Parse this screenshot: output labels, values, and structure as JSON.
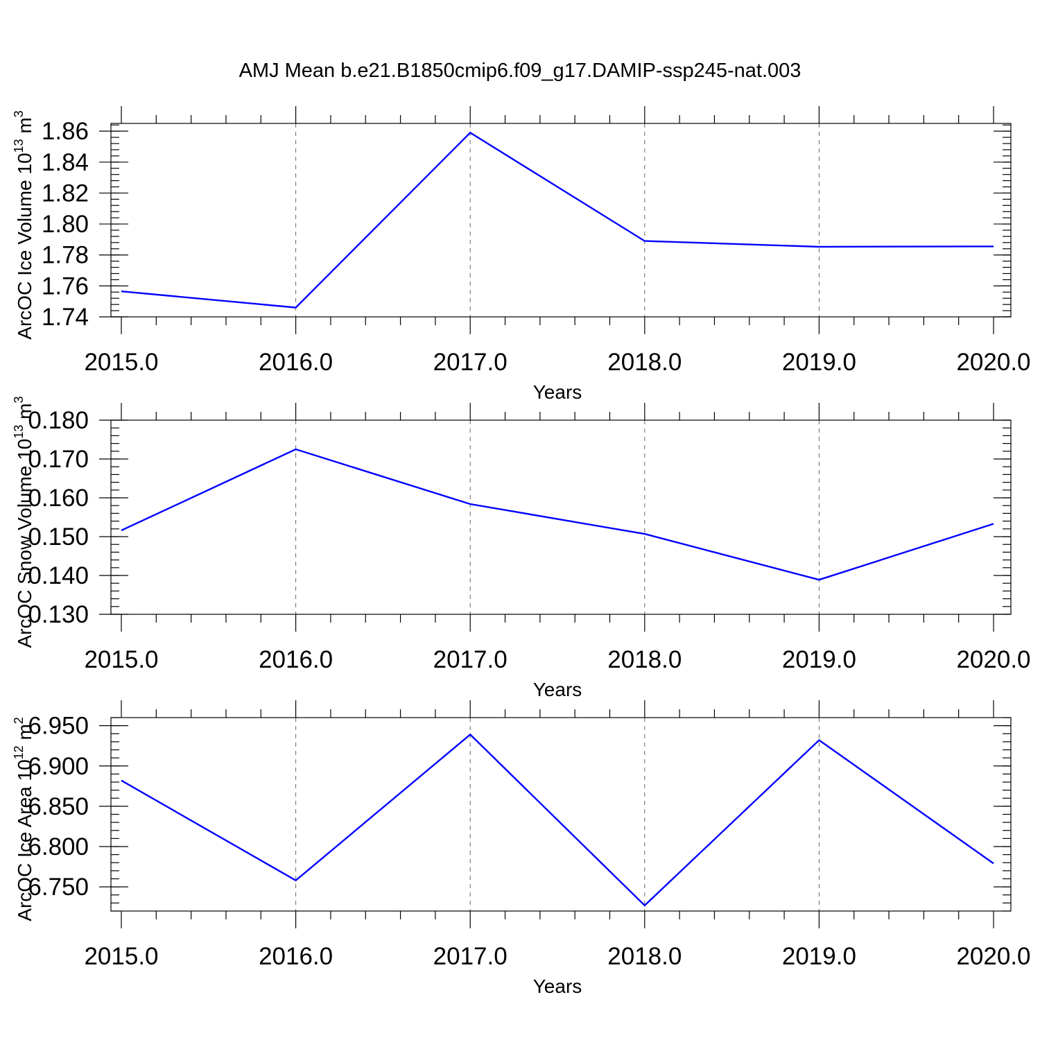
{
  "title": "AMJ Mean b.e21.B1850cmip6.f09_g17.DAMIP-ssp245-nat.003",
  "colors": {
    "series": "#0000ff",
    "frame": "#000000",
    "background": "#ffffff"
  },
  "chart_data": [
    {
      "type": "line",
      "x": [
        2015,
        2016,
        2017,
        2018,
        2019,
        2020
      ],
      "x_tick_labels": [
        "2015.0",
        "2016.0",
        "2017.0",
        "2018.0",
        "2019.0",
        "2020.0"
      ],
      "xlabel": "Years",
      "ylabel": "ArcOC Ice Volume 10",
      "ylabel_exp": "13",
      "ylabel_unit": " m",
      "ylabel_unit_exp": "3",
      "xlim": [
        2015,
        2020
      ],
      "ylim": [
        1.74,
        1.865
      ],
      "y_ticks": [
        1.74,
        1.76,
        1.78,
        1.8,
        1.82,
        1.84,
        1.86
      ],
      "y_tick_labels": [
        "1.74",
        "1.76",
        "1.78",
        "1.80",
        "1.82",
        "1.84",
        "1.86"
      ],
      "y_minor_step": 0.004,
      "grid": "x-dashed",
      "series": [
        {
          "values": [
            1.7565,
            1.746,
            1.859,
            1.789,
            1.7853,
            1.7855
          ]
        }
      ]
    },
    {
      "type": "line",
      "x": [
        2015,
        2016,
        2017,
        2018,
        2019,
        2020
      ],
      "x_tick_labels": [
        "2015.0",
        "2016.0",
        "2017.0",
        "2018.0",
        "2019.0",
        "2020.0"
      ],
      "xlabel": "Years",
      "ylabel": "ArcOC Snow Volume 10",
      "ylabel_exp": "13",
      "ylabel_unit": " m",
      "ylabel_unit_exp": "3",
      "xlim": [
        2015,
        2020
      ],
      "ylim": [
        0.13,
        0.18
      ],
      "y_ticks": [
        0.13,
        0.14,
        0.15,
        0.16,
        0.17,
        0.18
      ],
      "y_tick_labels": [
        "0.130",
        "0.140",
        "0.150",
        "0.160",
        "0.170",
        "0.180"
      ],
      "y_minor_step": 0.002,
      "grid": "x-dashed",
      "series": [
        {
          "values": [
            0.1516,
            0.1725,
            0.1584,
            0.1507,
            0.1389,
            0.1533
          ]
        }
      ]
    },
    {
      "type": "line",
      "x": [
        2015,
        2016,
        2017,
        2018,
        2019,
        2020
      ],
      "x_tick_labels": [
        "2015.0",
        "2016.0",
        "2017.0",
        "2018.0",
        "2019.0",
        "2020.0"
      ],
      "xlabel": "Years",
      "ylabel": "ArcOC Ice Area 10",
      "ylabel_exp": "12",
      "ylabel_unit": " m",
      "ylabel_unit_exp": "2",
      "xlim": [
        2015,
        2020
      ],
      "ylim": [
        6.72,
        6.96
      ],
      "y_ticks": [
        6.75,
        6.8,
        6.85,
        6.9,
        6.95
      ],
      "y_tick_labels": [
        "6.750",
        "6.800",
        "6.850",
        "6.900",
        "6.950"
      ],
      "y_minor_step": 0.01,
      "grid": "x-dashed",
      "series": [
        {
          "values": [
            6.882,
            6.758,
            6.939,
            6.727,
            6.932,
            6.779
          ]
        }
      ]
    }
  ]
}
